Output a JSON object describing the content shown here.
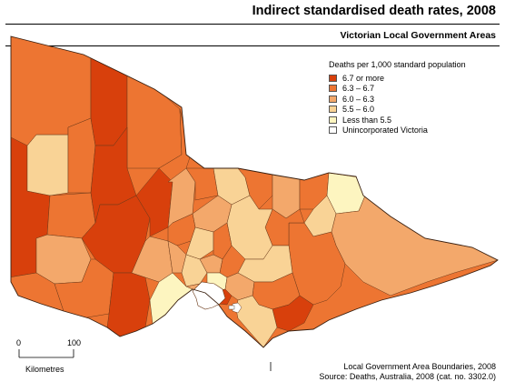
{
  "title": "Indirect standardised death rates, 2008",
  "subtitle": "Victorian Local Government Areas",
  "legend": {
    "title": "Deaths per 1,000 standard population",
    "items": [
      {
        "label": "6.7 or more",
        "color": "#d8400c"
      },
      {
        "label": "6.3 – 6.7",
        "color": "#ed7532"
      },
      {
        "label": "6.0 – 6.3",
        "color": "#f3a86b"
      },
      {
        "label": "5.5 – 6.0",
        "color": "#f9d396"
      },
      {
        "label": "Less than 5.5",
        "color": "#fdf5c0"
      },
      {
        "label": "Unincorporated Victoria",
        "color": "#ffffff"
      }
    ]
  },
  "scale_bar": {
    "start_label": "0",
    "end_label": "100",
    "unit": "Kilometres"
  },
  "credits": {
    "line1": "Local Government Area Boundaries, 2008",
    "line2": "Source: Deaths, Australia, 2008 (cat. no. 3302.0)"
  }
}
